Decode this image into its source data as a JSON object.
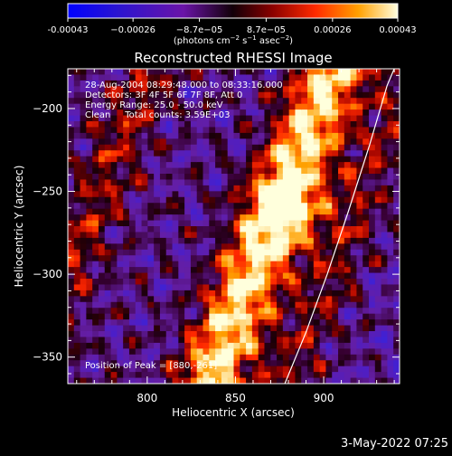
{
  "chart_data": {
    "type": "heatmap",
    "title": "Reconstructed RHESSI Image",
    "xlabel": "Heliocentric X (arcsec)",
    "ylabel": "Heliocentric Y (arcsec)",
    "xlim": [
      755,
      943
    ],
    "ylim": [
      -366,
      -176
    ],
    "x_ticks": [
      800,
      850,
      900
    ],
    "y_ticks": [
      -200,
      -250,
      -300,
      -350
    ],
    "colorbar": {
      "range": [
        -0.00043,
        0.00043
      ],
      "tick_values": [
        -0.00043,
        -0.00026,
        -8.7e-05,
        8.7e-05,
        0.00026,
        0.00043
      ],
      "tick_labels": [
        "-0.00043",
        "−0.00026",
        "−8.7e−05",
        "8.7e−05",
        "0.00026",
        "0.00043"
      ],
      "unit_text": "(photons cm",
      "unit_sup1": "−2",
      "unit_mid": " s",
      "unit_sup2": "−1",
      "unit_mid2": " asec",
      "unit_sup3": "−2",
      "unit_end": ")"
    },
    "info_lines": [
      "28-Aug-2004 08:29:48.000 to 08:33:16.000",
      "Detectors: 3F 4F 5F 6F 7F 8F, Att 0",
      "Energy Range: 25.0 - 50.0 keV",
      "Clean     Total counts: 3.59E+03"
    ],
    "peak_label": "Position of Peak = [880,-261]",
    "peak": [
      880,
      -261
    ],
    "limb_curve": [
      [
        878,
        -366
      ],
      [
        890,
        -335
      ],
      [
        902,
        -300
      ],
      [
        914,
        -262
      ],
      [
        926,
        -222
      ],
      [
        936,
        -186
      ],
      [
        940,
        -176
      ]
    ],
    "grid": false
  },
  "footer": {
    "timestamp": "3-May-2022 07:25"
  },
  "colors": {
    "background": "#000000",
    "foreground": "#ffffff"
  }
}
